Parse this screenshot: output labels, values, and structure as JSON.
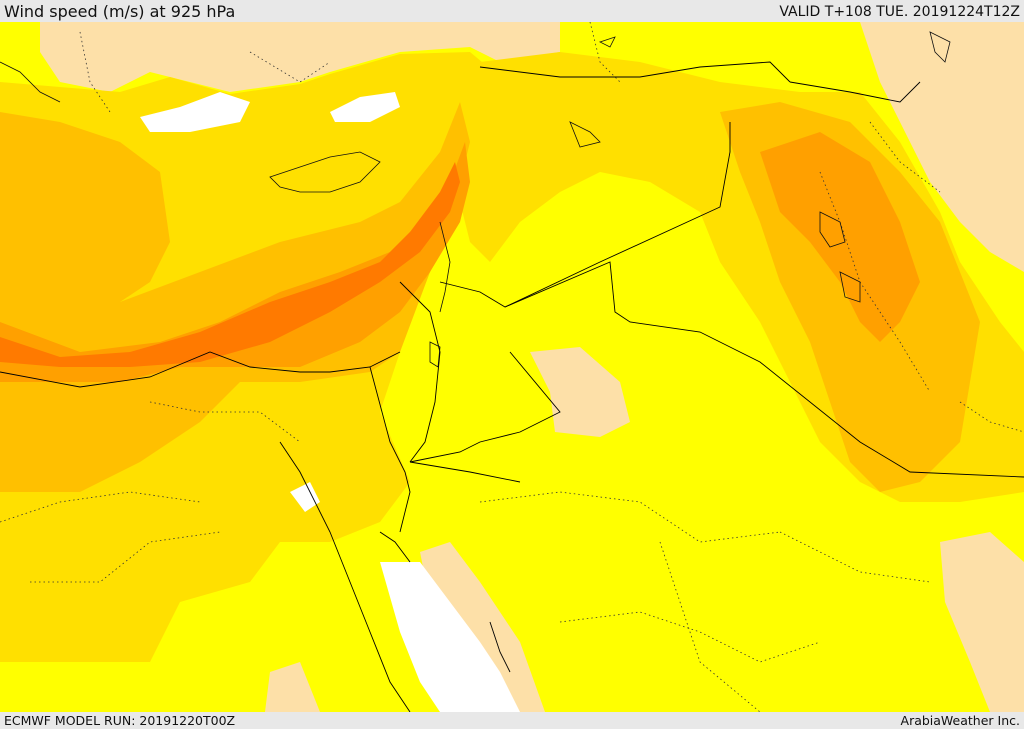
{
  "header": {
    "title": "Wind speed (m/s) at 925 hPa",
    "valid_time": "VALID T+108 TUE. 20191224T12Z"
  },
  "footer": {
    "model_run": "ECMWF MODEL RUN: 20191220T00Z",
    "credit": "ArabiaWeather Inc."
  },
  "map": {
    "variable": "wind speed",
    "level": "925 hPa",
    "colors": {
      "calm": "#ffffff",
      "light": "#fde0a8",
      "low": "#ffff00",
      "moderate": "#ffe000",
      "fresh": "#ffc000",
      "strong": "#ffa000",
      "very_strong": "#ff7a00",
      "border": "#000000"
    }
  }
}
